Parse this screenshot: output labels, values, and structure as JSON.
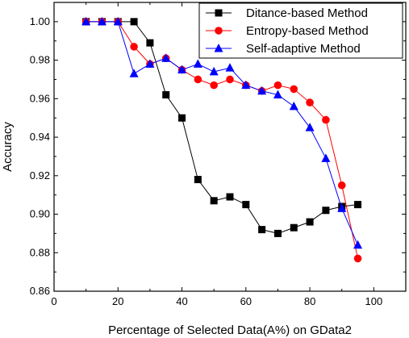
{
  "chart_data": {
    "type": "line",
    "xlabel": "Percentage of Selected Data(A%) on GData2",
    "ylabel": "Accuracy",
    "xlim": [
      0,
      110
    ],
    "ylim": [
      0.86,
      1.01
    ],
    "xticks": [
      0,
      20,
      40,
      60,
      80,
      100
    ],
    "yticks": [
      0.86,
      0.88,
      0.9,
      0.92,
      0.94,
      0.96,
      0.98,
      1.0
    ],
    "ytick_labels": [
      "0.86",
      "0.88",
      "0.90",
      "0.92",
      "0.94",
      "0.96",
      "0.98",
      "1.00"
    ],
    "legend_position": "top-right",
    "grid": false,
    "x": [
      10,
      15,
      20,
      25,
      30,
      35,
      40,
      45,
      50,
      55,
      60,
      65,
      70,
      75,
      80,
      85,
      90,
      95
    ],
    "series": [
      {
        "name": "Ditance-based Method",
        "color": "#000000",
        "marker": "square",
        "values": [
          1.0,
          1.0,
          1.0,
          1.0,
          0.989,
          0.962,
          0.95,
          0.918,
          0.907,
          0.909,
          0.905,
          0.892,
          0.89,
          0.893,
          0.896,
          0.902,
          0.904,
          0.905
        ]
      },
      {
        "name": "Entropy-based Method",
        "color": "#ff0000",
        "marker": "circle",
        "values": [
          1.0,
          1.0,
          1.0,
          0.987,
          0.978,
          0.981,
          0.975,
          0.97,
          0.967,
          0.97,
          0.967,
          0.964,
          0.967,
          0.965,
          0.958,
          0.949,
          0.915,
          0.877
        ]
      },
      {
        "name": "Self-adaptive Method",
        "color": "#0000ff",
        "marker": "triangle",
        "values": [
          1.0,
          1.0,
          1.0,
          0.973,
          0.978,
          0.981,
          0.975,
          0.978,
          0.974,
          0.976,
          0.967,
          0.964,
          0.962,
          0.956,
          0.945,
          0.929,
          0.903,
          0.884
        ]
      }
    ]
  }
}
